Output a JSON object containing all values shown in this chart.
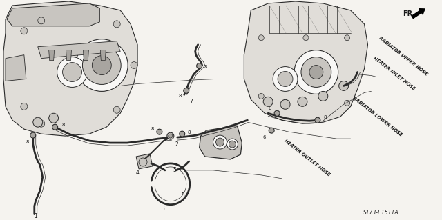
{
  "bg_color": "#f5f3ef",
  "line_color": "#2a2a2a",
  "text_color": "#1a1a1a",
  "diagram_ref": "ST73-E1511A",
  "fr_label": "FR.",
  "labels": {
    "radiator_upper_hose": "RADIATOR UPPER HOSE",
    "heater_inlet_hose": "HEATER INLET HOSE",
    "radiator_lower_hose": "RADIATOR LOWER HOSE",
    "heater_outlet_hose": "HEATER OUTLET HOSE"
  },
  "figsize": [
    6.4,
    3.19
  ],
  "dpi": 100,
  "lw_thin": 0.5,
  "lw_med": 0.9,
  "lw_hose": 2.0,
  "lw_thick": 1.4,
  "gray_fill": "#e0ddd8",
  "gray_mid": "#c8c5c0",
  "gray_dark": "#a8a5a0",
  "white": "#f8f7f5"
}
